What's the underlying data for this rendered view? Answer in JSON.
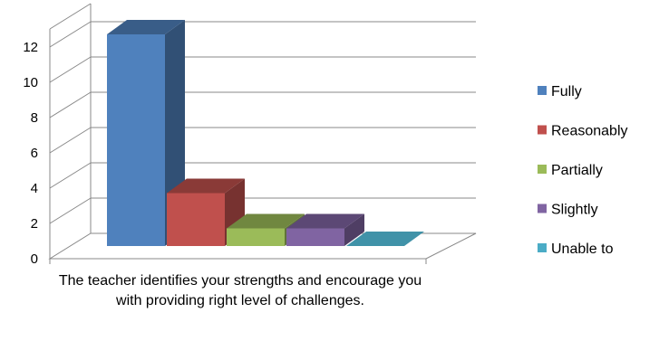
{
  "chart_data": {
    "type": "bar",
    "categories": [
      "The teacher identifies your strengths and encourage you with providing right level of challenges."
    ],
    "series": [
      {
        "name": "Fully",
        "values": [
          12
        ],
        "color": "#4F81BD"
      },
      {
        "name": "Reasonably",
        "values": [
          3
        ],
        "color": "#C0504D"
      },
      {
        "name": "Partially",
        "values": [
          1
        ],
        "color": "#9BBB59"
      },
      {
        "name": "Slightly",
        "values": [
          1
        ],
        "color": "#8064A2"
      },
      {
        "name": "Unable to",
        "values": [
          0
        ],
        "color": "#4BACC6"
      }
    ],
    "y_ticks": [
      "0",
      "2",
      "4",
      "6",
      "8",
      "10",
      "12"
    ],
    "ylim": [
      0,
      12
    ],
    "grid": true,
    "legend_position": "right",
    "style": "3d-clustered-column"
  }
}
